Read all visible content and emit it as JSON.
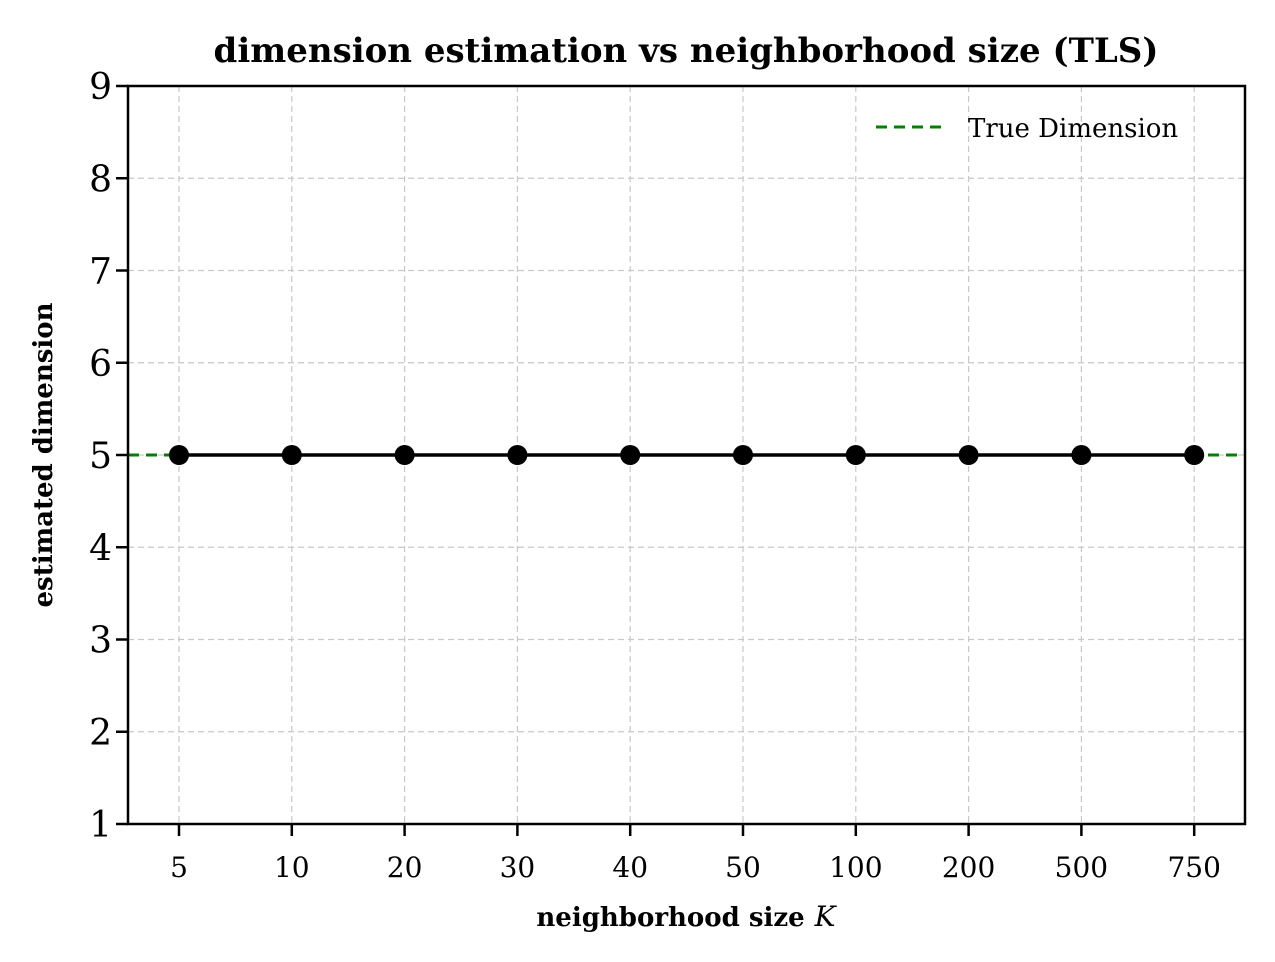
{
  "chart_data": {
    "type": "line",
    "title": "dimension estimation vs neighborhood size (TLS)",
    "xlabel": "neighborhood size",
    "xlabel_var": "K",
    "ylabel": "estimated dimension",
    "categories": [
      "5",
      "10",
      "20",
      "30",
      "40",
      "50",
      "100",
      "200",
      "500",
      "750"
    ],
    "series": [
      {
        "name": "estimated dimension",
        "color": "#000000",
        "marker": "circle",
        "values": [
          5,
          5,
          5,
          5,
          5,
          5,
          5,
          5,
          5,
          5
        ]
      }
    ],
    "reference_lines": [
      {
        "name": "True Dimension",
        "y": 5,
        "color": "#008000",
        "style": "dashed"
      }
    ],
    "ylim": [
      1,
      9
    ],
    "yticks": [
      1,
      2,
      3,
      4,
      5,
      6,
      7,
      8,
      9
    ],
    "grid": true,
    "legend": {
      "position": "top-right",
      "entries": [
        "True Dimension"
      ]
    }
  }
}
